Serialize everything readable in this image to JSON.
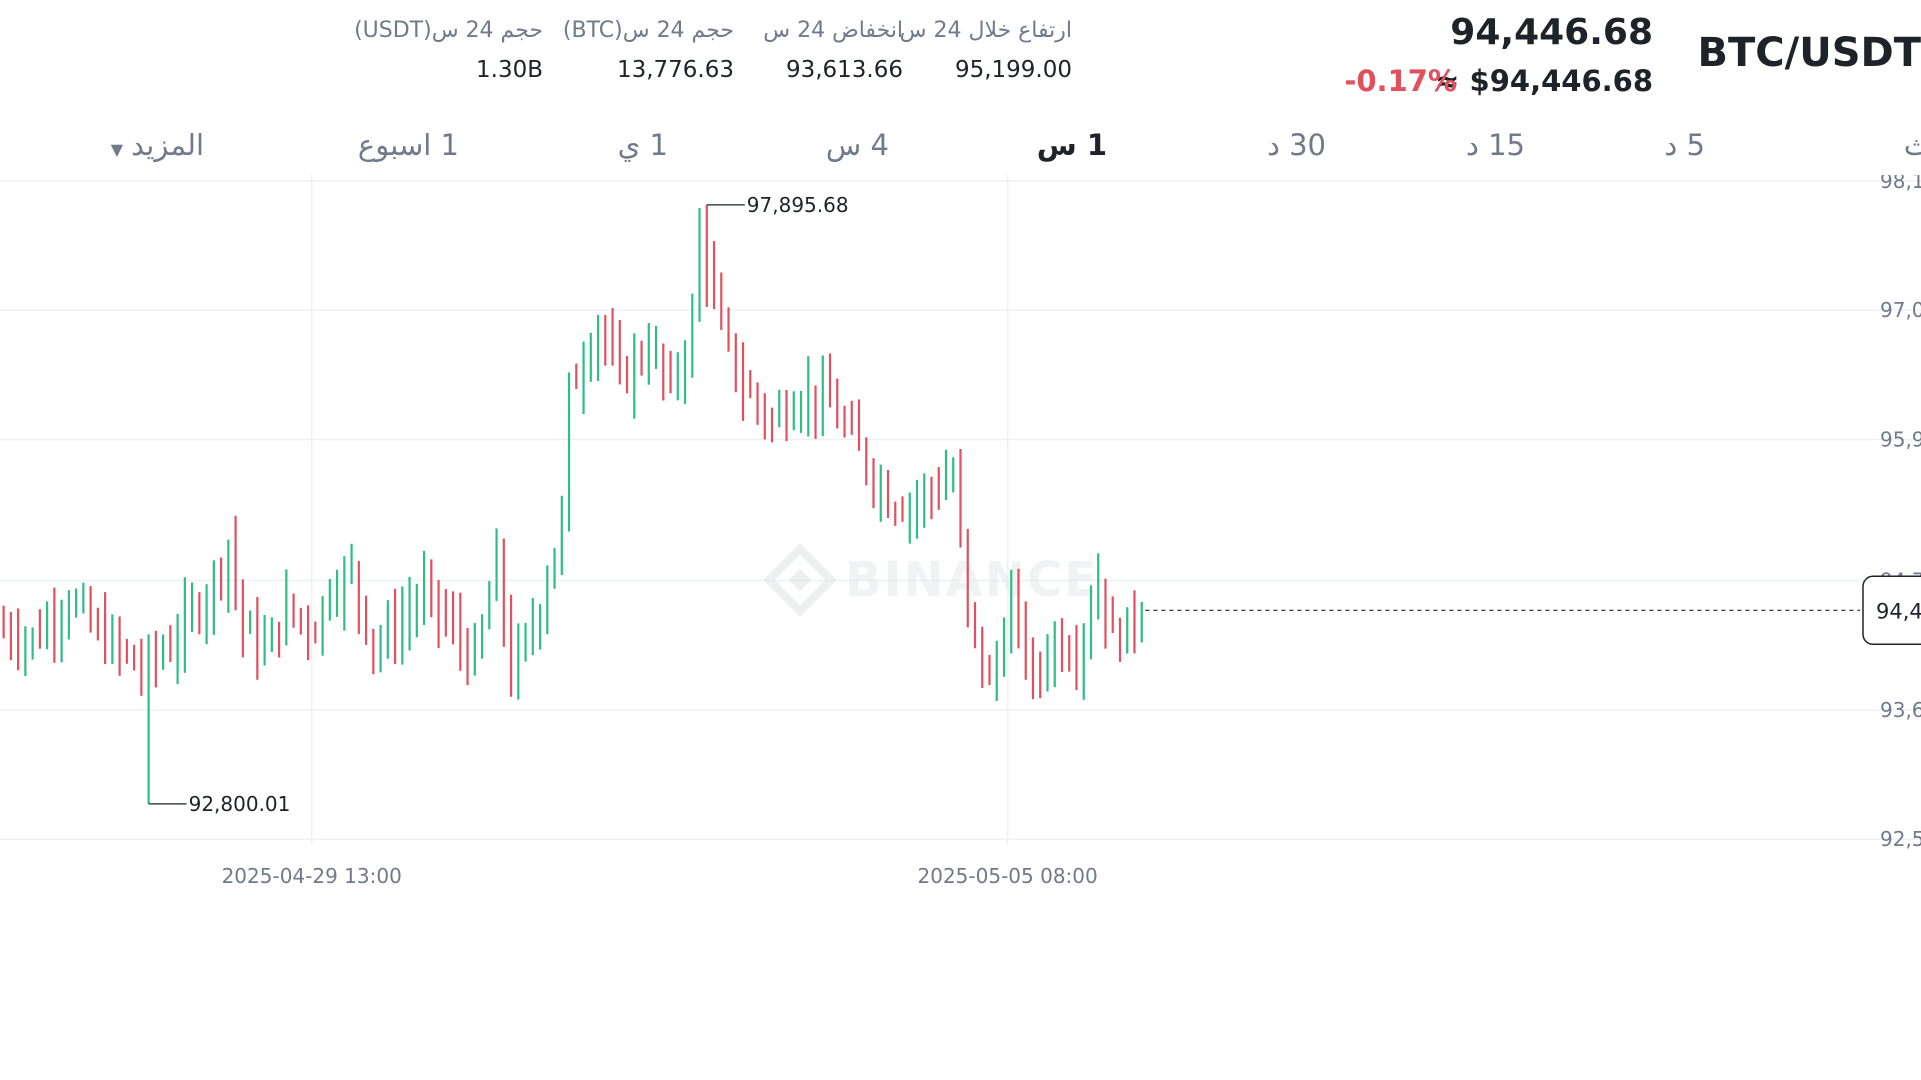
{
  "header": {
    "pair": "BTC/USDT",
    "last_price": "94,446.68",
    "usd_price": "≈ $94,446.68",
    "change_pct": "-0.17%",
    "stats": [
      {
        "label": "ارتفاع خلال 24 س",
        "value": "95,199.00"
      },
      {
        "label": "انخفاض 24 س",
        "value": "93,613.66"
      },
      {
        "label": "حجم 24 س(BTC)",
        "value": "13,776.63"
      },
      {
        "label": "حجم 24 س(USDT)",
        "value": "1.30B"
      }
    ]
  },
  "tabs": [
    {
      "label": "ث",
      "active": false
    },
    {
      "label": "5 د",
      "active": false
    },
    {
      "label": "15 د",
      "active": false
    },
    {
      "label": "30 د",
      "active": false
    },
    {
      "label": "1 س",
      "active": true
    },
    {
      "label": "4 س",
      "active": false
    },
    {
      "label": "1 ي",
      "active": false
    },
    {
      "label": "1 اسبوع",
      "active": false
    },
    {
      "label": "المزيد",
      "active": false
    }
  ],
  "watermark": "BINANCE",
  "colors": {
    "up": "#2ebd85",
    "down": "#e0505e",
    "text": "#1e2329",
    "muted": "#707a8a",
    "grid": "#eef0f2"
  },
  "chart_data": {
    "type": "ohlc",
    "y_tick_labels": [
      "98,1",
      "97,0",
      "95,9",
      "94,7",
      "93,6",
      "92,5"
    ],
    "y_ticks": [
      98100,
      97000,
      95900,
      94700,
      93600,
      92500
    ],
    "ylim": [
      92450,
      98150
    ],
    "x_tick_labels": [
      "2025-04-29 13:00",
      "2025-05-05 08:00"
    ],
    "x_tick_positions": [
      43,
      139
    ],
    "x_range": [
      0,
      265
    ],
    "current_price_label": "94,4",
    "current_price": 94446.68,
    "high_annotation": {
      "text": "97,895.68",
      "value": 97895.68
    },
    "low_annotation": {
      "text": "92,800.01",
      "value": 92800.01
    },
    "anchors": [
      [
        0,
        94300
      ],
      [
        5,
        94200
      ],
      [
        10,
        94550
      ],
      [
        14,
        94250
      ],
      [
        20,
        93950
      ],
      [
        24,
        94150
      ],
      [
        28,
        94500
      ],
      [
        30,
        94700
      ],
      [
        32,
        95000
      ],
      [
        34,
        94300
      ],
      [
        37,
        94100
      ],
      [
        40,
        94450
      ],
      [
        44,
        94300
      ],
      [
        46,
        94650
      ],
      [
        49,
        94750
      ],
      [
        52,
        94150
      ],
      [
        55,
        94300
      ],
      [
        59,
        94600
      ],
      [
        62,
        94350
      ],
      [
        66,
        94000
      ],
      [
        69,
        94850
      ],
      [
        71,
        93900
      ],
      [
        74,
        94300
      ],
      [
        78,
        95200
      ],
      [
        79,
        96300
      ],
      [
        83,
        96900
      ],
      [
        86,
        96400
      ],
      [
        90,
        96700
      ],
      [
        93,
        96300
      ],
      [
        96,
        96900
      ],
      [
        97,
        97700
      ],
      [
        100,
        96800
      ],
      [
        103,
        96350
      ],
      [
        107,
        96050
      ],
      [
        111,
        96300
      ],
      [
        115,
        96200
      ],
      [
        119,
        95800
      ],
      [
        123,
        95400
      ],
      [
        126,
        95350
      ],
      [
        132,
        95600
      ],
      [
        134,
        94400
      ],
      [
        137,
        93800
      ],
      [
        140,
        94500
      ],
      [
        143,
        93850
      ],
      [
        146,
        94200
      ],
      [
        149,
        94100
      ],
      [
        152,
        94700
      ],
      [
        154,
        94200
      ],
      [
        157,
        94350
      ]
    ],
    "candle_count": 158
  }
}
